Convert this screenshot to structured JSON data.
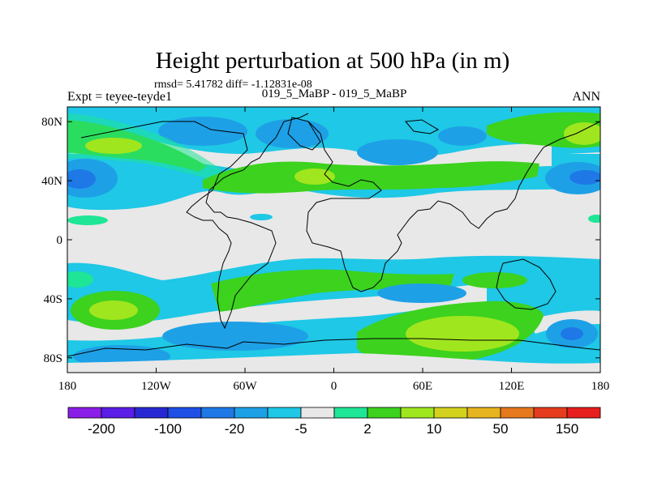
{
  "chart_data": {
    "type": "heatmap",
    "title": "Height perturbation at 500 hPa (in m)",
    "stats": "rmsd= 5.41782 diff= -1.12831e-08",
    "left_label": "Expt = teyee-teyde1",
    "center_label": "019_5_MaBP - 019_5_MaBP",
    "right_label": "ANN",
    "x_ticks": [
      "180",
      "120W",
      "60W",
      "0",
      "60E",
      "120E",
      "180"
    ],
    "x_tick_values": [
      -180,
      -120,
      -60,
      0,
      60,
      120,
      180
    ],
    "y_ticks": [
      "80N",
      "40N",
      "0",
      "40S",
      "80S"
    ],
    "y_tick_values": [
      80,
      40,
      0,
      -40,
      -80
    ],
    "xlim": [
      -180,
      180
    ],
    "ylim": [
      -90,
      90
    ],
    "colorbar": {
      "colors": [
        "#8b1ee6",
        "#5a1ee6",
        "#2828d2",
        "#1e50e6",
        "#1e78e6",
        "#1ea0e6",
        "#1ec8e6",
        "#e8e8e8",
        "#1ee696",
        "#3cd21e",
        "#a0e61e",
        "#d2d21e",
        "#e6b41e",
        "#e6781e",
        "#e63c1e",
        "#e61e1e"
      ],
      "tick_labels": [
        "-200",
        "-100",
        "-20",
        "-5",
        "2",
        "10",
        "50",
        "150"
      ]
    },
    "fields": [
      {
        "name": "NH-west blue center",
        "lon": -168,
        "lat": 40,
        "value": -20
      },
      {
        "name": "N Pacific green",
        "lon": -135,
        "lat": 68,
        "value": 10
      },
      {
        "name": "Canada blue",
        "lon": -95,
        "lat": 78,
        "value": -5
      },
      {
        "name": "Atlantic blue",
        "lon": -45,
        "lat": 75,
        "value": -5
      },
      {
        "name": "N Atlantic green",
        "lon": -10,
        "lat": 40,
        "value": 10
      },
      {
        "name": "Europe green",
        "lon": 50,
        "lat": 40,
        "value": 10
      },
      {
        "name": "Siberia blue",
        "lon": 20,
        "lat": 72,
        "value": -5
      },
      {
        "name": "NE Pacific blue",
        "lon": 170,
        "lat": 40,
        "value": -20
      },
      {
        "name": "NE Asia green",
        "lon": 145,
        "lat": 78,
        "value": 10
      },
      {
        "name": "S Pacific green",
        "lon": -140,
        "lat": -48,
        "value": 10
      },
      {
        "name": "S Atlantic green",
        "lon": -20,
        "lat": -38,
        "value": 10
      },
      {
        "name": "Southern ocean blue",
        "lon": -60,
        "lat": -70,
        "value": -5
      },
      {
        "name": "Indian ocean blue",
        "lon": 60,
        "lat": -42,
        "value": -5
      },
      {
        "name": "Antarctic green",
        "lon": 70,
        "lat": -75,
        "value": 10
      },
      {
        "name": "SE Pacific blue",
        "lon": 160,
        "lat": -70,
        "value": -5
      }
    ]
  }
}
